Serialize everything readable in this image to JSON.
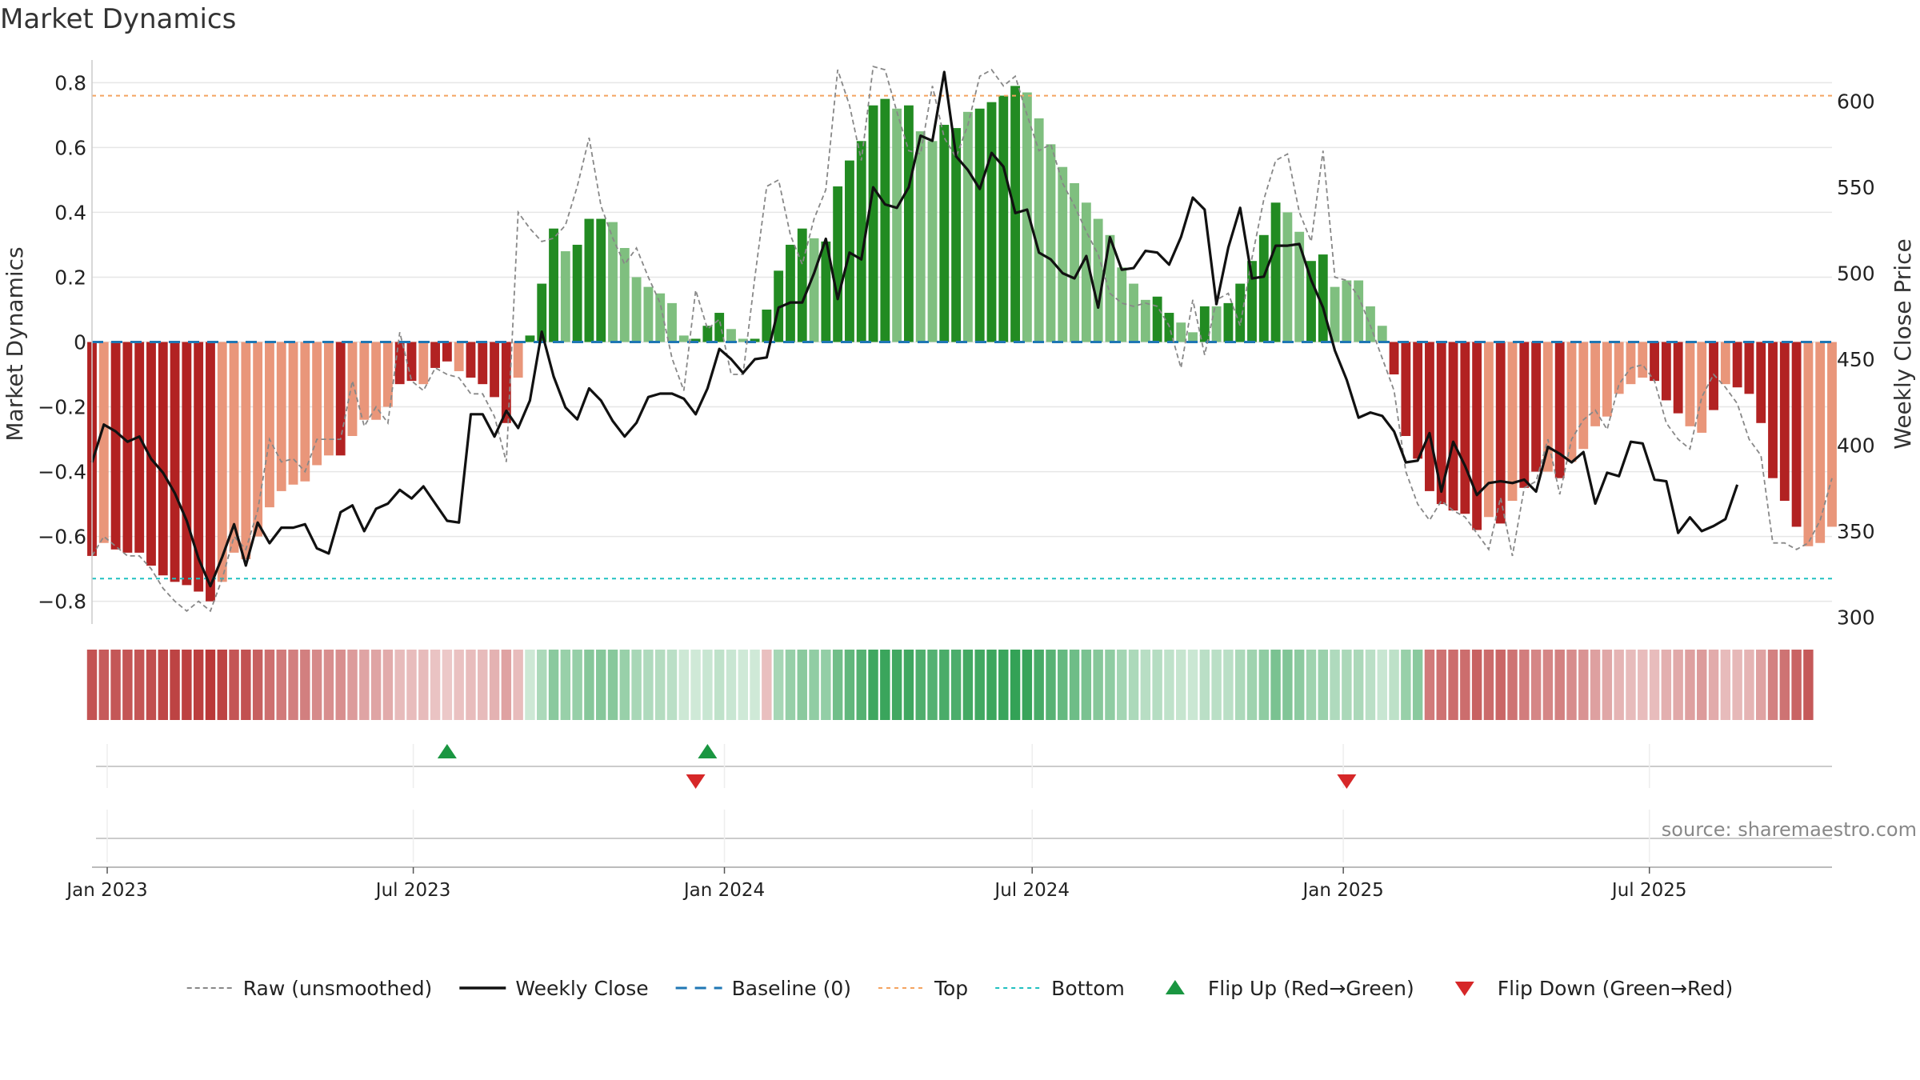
{
  "chart_data": {
    "type": "bar",
    "title": "Market Dynamics",
    "ylabel_left": "Market Dynamics",
    "ylabel_right": "Weekly Close Price",
    "source": "source: sharemaestro.com",
    "left_ylim": [
      -0.87,
      0.87
    ],
    "right_ylim": [
      296,
      624
    ],
    "left_ticks": [
      0.8,
      0.6,
      0.4,
      0.2,
      0,
      -0.2,
      -0.4,
      -0.6,
      -0.8
    ],
    "left_tick_labels": [
      "0.8",
      "0.6",
      "0.4",
      "0.2",
      "0",
      "−0.2",
      "−0.4",
      "−0.6",
      "−0.8"
    ],
    "right_ticks": [
      600,
      550,
      500,
      450,
      400,
      350,
      300
    ],
    "right_tick_labels": [
      "600",
      "550",
      "500",
      "450",
      "400",
      "350",
      "300"
    ],
    "x_range": [
      "2022-12-23",
      "2025-10-17"
    ],
    "x_ticks": [
      "2023-01-01",
      "2023-07-01",
      "2024-01-01",
      "2024-07-01",
      "2025-01-01",
      "2025-07-01"
    ],
    "x_tick_labels": [
      "Jan 2023",
      "Jul 2023",
      "Jan 2024",
      "Jul 2024",
      "Jan 2025",
      "Jul 2025"
    ],
    "start_date": "2022-12-23",
    "top_level": 0.76,
    "bottom_level": -0.73,
    "grid": true,
    "legend_position": "bottom",
    "legend": [
      {
        "label": "Raw (unsmoothed)",
        "style": "dashed-gray"
      },
      {
        "label": "Weekly Close",
        "style": "solid-black"
      },
      {
        "label": "Baseline (0)",
        "style": "dashed-blue"
      },
      {
        "label": "Top",
        "style": "dotted-orange"
      },
      {
        "label": "Bottom",
        "style": "dotted-cyan"
      },
      {
        "label": "Flip Up (Red→Green)",
        "style": "triangle-up-green"
      },
      {
        "label": "Flip Down (Green→Red)",
        "style": "triangle-down-red"
      }
    ],
    "colors": {
      "green_strong": "#228b22",
      "green_light": "#7fbf7f",
      "red_strong": "#b22222",
      "red_light": "#e9967a",
      "weekly_close": "#111111",
      "raw": "#888888",
      "baseline": "#1f77b4",
      "top": "#f4a460",
      "bottom": "#20c0c0",
      "flip_up": "#1a9641",
      "flip_down": "#d62728"
    },
    "bars": [
      -0.66,
      -0.62,
      -0.64,
      -0.65,
      -0.65,
      -0.69,
      -0.72,
      -0.74,
      -0.75,
      -0.77,
      -0.8,
      -0.74,
      -0.65,
      -0.67,
      -0.6,
      -0.51,
      -0.46,
      -0.44,
      -0.43,
      -0.38,
      -0.35,
      -0.35,
      -0.29,
      -0.24,
      -0.24,
      -0.2,
      -0.13,
      -0.12,
      -0.13,
      -0.08,
      -0.06,
      -0.09,
      -0.11,
      -0.13,
      -0.17,
      -0.25,
      -0.11,
      0.02,
      0.18,
      0.35,
      0.28,
      0.3,
      0.38,
      0.38,
      0.37,
      0.29,
      0.2,
      0.17,
      0.15,
      0.12,
      0.02,
      0.01,
      0.05,
      0.09,
      0.04,
      0.01,
      0.01,
      0.1,
      0.22,
      0.3,
      0.35,
      0.32,
      0.31,
      0.48,
      0.56,
      0.62,
      0.73,
      0.75,
      0.72,
      0.73,
      0.65,
      0.62,
      0.67,
      0.66,
      0.71,
      0.72,
      0.74,
      0.76,
      0.79,
      0.77,
      0.69,
      0.61,
      0.54,
      0.49,
      0.43,
      0.38,
      0.33,
      0.23,
      0.18,
      0.13,
      0.14,
      0.09,
      0.06,
      0.03,
      0.11,
      0.11,
      0.12,
      0.18,
      0.25,
      0.33,
      0.43,
      0.4,
      0.34,
      0.25,
      0.27,
      0.17,
      0.19,
      0.19,
      0.11,
      0.05,
      -0.1,
      -0.29,
      -0.36,
      -0.46,
      -0.5,
      -0.52,
      -0.53,
      -0.58,
      -0.54,
      -0.56,
      -0.49,
      -0.45,
      -0.4,
      -0.4,
      -0.42,
      -0.37,
      -0.33,
      -0.26,
      -0.23,
      -0.16,
      -0.13,
      -0.11,
      -0.12,
      -0.18,
      -0.22,
      -0.26,
      -0.28,
      -0.21,
      -0.13,
      -0.14,
      -0.16,
      -0.25,
      -0.42,
      -0.49,
      -0.57,
      -0.63,
      -0.62,
      -0.57
    ],
    "bar_strength": [
      "s",
      "l",
      "s",
      "s",
      "s",
      "s",
      "s",
      "s",
      "s",
      "s",
      "s",
      "l",
      "l",
      "l",
      "l",
      "l",
      "l",
      "l",
      "l",
      "l",
      "l",
      "s",
      "l",
      "l",
      "l",
      "l",
      "s",
      "s",
      "l",
      "s",
      "s",
      "l",
      "s",
      "s",
      "s",
      "s",
      "l",
      "s",
      "s",
      "s",
      "l",
      "s",
      "s",
      "s",
      "l",
      "l",
      "l",
      "l",
      "l",
      "l",
      "l",
      "s",
      "s",
      "s",
      "l",
      "l",
      "s",
      "s",
      "s",
      "s",
      "s",
      "l",
      "s",
      "s",
      "s",
      "s",
      "s",
      "s",
      "l",
      "s",
      "l",
      "l",
      "s",
      "s",
      "l",
      "s",
      "s",
      "s",
      "s",
      "l",
      "l",
      "l",
      "l",
      "l",
      "l",
      "l",
      "l",
      "l",
      "l",
      "l",
      "s",
      "s",
      "l",
      "l",
      "s",
      "l",
      "s",
      "s",
      "s",
      "s",
      "s",
      "l",
      "l",
      "s",
      "s",
      "l",
      "l",
      "l",
      "l",
      "l",
      "s",
      "s",
      "s",
      "s",
      "s",
      "s",
      "s",
      "s",
      "l",
      "s",
      "l",
      "s",
      "s",
      "l",
      "s",
      "l",
      "l",
      "l",
      "l",
      "l",
      "l",
      "l",
      "s",
      "s",
      "s",
      "l",
      "l",
      "s",
      "l",
      "s",
      "s",
      "s",
      "s",
      "s",
      "s",
      "l"
    ],
    "raw": [
      -0.66,
      -0.6,
      -0.63,
      -0.66,
      -0.66,
      -0.7,
      -0.76,
      -0.8,
      -0.83,
      -0.8,
      -0.83,
      -0.73,
      -0.6,
      -0.64,
      -0.52,
      -0.3,
      -0.37,
      -0.36,
      -0.4,
      -0.3,
      -0.3,
      -0.3,
      -0.12,
      -0.26,
      -0.2,
      -0.25,
      0.03,
      -0.12,
      -0.15,
      -0.08,
      -0.1,
      -0.11,
      -0.16,
      -0.16,
      -0.23,
      -0.37,
      0.4,
      0.35,
      0.31,
      0.32,
      0.36,
      0.48,
      0.63,
      0.42,
      0.32,
      0.24,
      0.29,
      0.2,
      0.12,
      -0.05,
      -0.15,
      0.16,
      0.04,
      0.07,
      -0.1,
      -0.1,
      0.2,
      0.48,
      0.5,
      0.33,
      0.24,
      0.38,
      0.47,
      0.84,
      0.73,
      0.56,
      0.85,
      0.84,
      0.71,
      0.59,
      0.58,
      0.79,
      0.63,
      0.57,
      0.67,
      0.82,
      0.84,
      0.79,
      0.82,
      0.7,
      0.59,
      0.61,
      0.49,
      0.42,
      0.34,
      0.27,
      0.15,
      0.12,
      0.11,
      0.12,
      0.11,
      0.05,
      -0.08,
      0.13,
      -0.04,
      0.13,
      0.15,
      0.05,
      0.26,
      0.44,
      0.56,
      0.58,
      0.4,
      0.31,
      0.59,
      0.2,
      0.19,
      0.14,
      0.05,
      -0.05,
      -0.15,
      -0.4,
      -0.5,
      -0.55,
      -0.49,
      -0.52,
      -0.54,
      -0.59,
      -0.64,
      -0.48,
      -0.66,
      -0.45,
      -0.43,
      -0.3,
      -0.47,
      -0.3,
      -0.24,
      -0.21,
      -0.27,
      -0.13,
      -0.08,
      -0.07,
      -0.12,
      -0.25,
      -0.3,
      -0.33,
      -0.17,
      -0.1,
      -0.14,
      -0.19,
      -0.3,
      -0.35,
      -0.62,
      -0.62,
      -0.64,
      -0.62,
      -0.55,
      -0.42
    ],
    "weekly_close": [
      390,
      412,
      408,
      402,
      405,
      392,
      384,
      372,
      356,
      334,
      318,
      335,
      354,
      330,
      355,
      343,
      352,
      352,
      354,
      340,
      337,
      361,
      365,
      350,
      363,
      366,
      374,
      369,
      376,
      366,
      356,
      355,
      418,
      418,
      405,
      420,
      410,
      426,
      466,
      440,
      422,
      415,
      433,
      426,
      414,
      405,
      413,
      428,
      430,
      430,
      427,
      418,
      433,
      456,
      450,
      442,
      450,
      451,
      480,
      483,
      483,
      500,
      520,
      485,
      512,
      508,
      550,
      540,
      538,
      550,
      580,
      577,
      617,
      568,
      560,
      549,
      570,
      562,
      535,
      537,
      512,
      508,
      500,
      497,
      510,
      480,
      521,
      502,
      503,
      513,
      512,
      505,
      521,
      544,
      537,
      482,
      515,
      538,
      497,
      498,
      516,
      516,
      517,
      496,
      480,
      455,
      438,
      416,
      419,
      417,
      408,
      390,
      391,
      407,
      373,
      402,
      388,
      371,
      378,
      379,
      378,
      380,
      373,
      399,
      395,
      390,
      396,
      366,
      384,
      382,
      402,
      401,
      380,
      379,
      349,
      358,
      350,
      353,
      357,
      377
    ],
    "regime": [
      "r",
      "r",
      "r",
      "r",
      "r",
      "r",
      "r",
      "r",
      "r",
      "r",
      "r",
      "r",
      "r",
      "r",
      "r",
      "r",
      "r",
      "r",
      "r",
      "r",
      "r",
      "r",
      "r",
      "r",
      "r",
      "r",
      "r",
      "r",
      "r",
      "r",
      "r",
      "r",
      "r",
      "r",
      "r",
      "r",
      "r",
      "g",
      "g",
      "g",
      "g",
      "g",
      "g",
      "g",
      "g",
      "g",
      "g",
      "g",
      "g",
      "g",
      "g",
      "g",
      "g",
      "g",
      "g",
      "g",
      "g",
      "r",
      "g",
      "g",
      "g",
      "g",
      "g",
      "g",
      "g",
      "g",
      "g",
      "g",
      "g",
      "g",
      "g",
      "g",
      "g",
      "g",
      "g",
      "g",
      "g",
      "g",
      "g",
      "g",
      "g",
      "g",
      "g",
      "g",
      "g",
      "g",
      "g",
      "g",
      "g",
      "g",
      "g",
      "g",
      "g",
      "g",
      "g",
      "g",
      "g",
      "g",
      "g",
      "g",
      "g",
      "g",
      "g",
      "g",
      "g",
      "g",
      "g",
      "g",
      "g",
      "g",
      "g",
      "g",
      "g",
      "r",
      "r",
      "r",
      "r",
      "r",
      "r",
      "r",
      "r",
      "r",
      "r",
      "r",
      "r",
      "r",
      "r",
      "r",
      "r",
      "r",
      "r",
      "r",
      "r",
      "r",
      "r",
      "r",
      "r",
      "r",
      "r",
      "r",
      "r",
      "r",
      "r",
      "r",
      "r",
      "r"
    ],
    "flip_up": [
      "2023-07-21",
      "2023-12-22"
    ],
    "flip_down": [
      "2023-12-15",
      "2025-01-03"
    ]
  }
}
